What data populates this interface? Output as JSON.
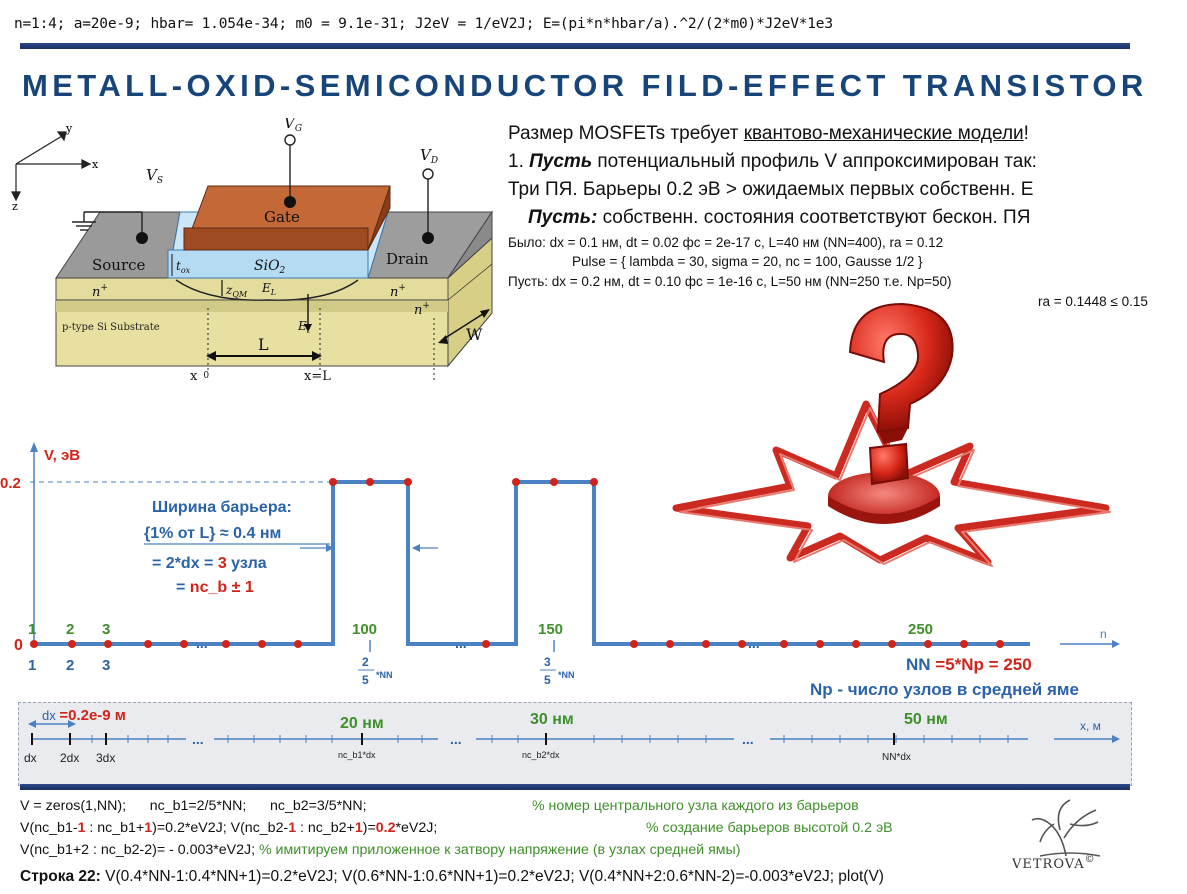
{
  "top_code": "n=1:4; a=20e-9; hbar= 1.054e-34; m0 = 9.1e-31; J2eV = 1/eV2J; E=(pi*n*hbar/a).^2/(2*m0)*J2eV*1e3",
  "title": "METALL-OXID-SEMICONDUCTOR FILD-EFFECT TRANSISTOR",
  "description": {
    "line1_a": "Размер MOSFETs требует ",
    "line1_b": "квантово-механические модели",
    "line1_c": "!",
    "line2_a": "1. ",
    "line2_b": "Пусть",
    "line2_c": " потенциальный профиль V аппроксимирован так:",
    "line3": "Три ПЯ. Барьеры 0.2 эВ > ожидаемых первых собственн. Е",
    "line4_a": "Пусть:",
    "line4_b": " собственн. состояния соответствуют бескон. ПЯ",
    "was_1": "Было:  dx = 0.1 нм, dt = 0.02 фс = 2e-17 с, L=40 нм (NN=400), ra = 0.12",
    "was_2": "Pulse = { lambda = 30, sigma = 20, nc = 100, Gausse 1/2 }",
    "let_1": "Пусть: dx = 0.2 нм, dt = 0.10 фс = 1e-16 с, L=50 нм (NN=250 т.е. Np=50)",
    "let_2": "ra = 0.1448 ≤ 0.15"
  },
  "mosfet": {
    "axis_y": "y",
    "axis_x": "x",
    "axis_z": "z",
    "vs": "V",
    "vs_sub": "S",
    "vg": "V",
    "vg_sub": "G",
    "vd": "V",
    "vd_sub": "D",
    "gate": "Gate",
    "source": "Source",
    "drain": "Drain",
    "oxide": "SiO",
    "oxide_sub": "2",
    "tox": "t",
    "tox_sub": "ox",
    "nplus_left": "n",
    "nplus_right": "n",
    "nplus_right2": "n",
    "plus": "+",
    "zqm": "z",
    "zqm_sub": "QM",
    "el": "E",
    "el_sub": "L",
    "et": "E",
    "et_sub": "t",
    "substrate": "p-type Si  Substrate",
    "L": "L",
    "W": "W",
    "x0": "x",
    "x0_sub": "0",
    "xL": "x=L"
  },
  "plot": {
    "ylabel": "V, эВ",
    "y02": "0.2",
    "y0": "0",
    "xlabel": "n",
    "top_nodes": [
      "1",
      "2",
      "3"
    ],
    "bottom_nodes": [
      "1",
      "2",
      "3"
    ],
    "n100": "100",
    "n150": "150",
    "n250": "250",
    "dots": "...",
    "frac1_num": "2",
    "frac1_den": "5",
    "frac2_num": "3",
    "frac2_den": "5",
    "nn_small": "*NN",
    "width_1": "Ширина барьера:",
    "width_2": "{1% от L} ≈ 0.4 нм",
    "eq_1a": "= 2*dx = ",
    "eq_1b": "3",
    "eq_1c": " узла",
    "eq_2a": "= ",
    "eq_2b": "nc_b ± 1",
    "nn_a": "NN ",
    "nn_b": "=5*Np = 250",
    "np_note": "Np - число узлов в средней яме"
  },
  "axisbox": {
    "dx_label": "dx ",
    "dx_value": "=0.2e-9 м",
    "m20": "20 нм",
    "m30": "30 нм",
    "m50": "50 нм",
    "xlabel": "x, м",
    "tick_dx": "dx",
    "tick_2dx": "2dx",
    "tick_3dx": "3dx",
    "tick_b1": "nc_b1*dx",
    "tick_b2": "nc_b2*dx",
    "tick_nn": "NN*dx",
    "dots": "..."
  },
  "code": {
    "l1_a": "V = zeros(1,NN);      nc_b1=2/5*NN;      nc_b2=3/5*NN;",
    "l1_c": "% номер центрального узла каждого из барьеров",
    "l2_a": "V(nc_b1-",
    "l2_b": "1",
    "l2_c": " : nc_b1+",
    "l2_d": "1",
    "l2_e": ")=0.2*eV2J;  V(nc_b2-",
    "l2_f": "1",
    "l2_g": " : nc_b2+",
    "l2_h": "1",
    "l2_i": ")=",
    "l2_j": "0.2",
    "l2_k": "*eV2J;",
    "l2_c2": "% создание барьеров высотой 0.2 эВ",
    "l3_a": "V(nc_b1+2 : nc_b2-2)= - 0.003*eV2J; ",
    "l3_c": "% имитируем приложенное к затвору напряжение (в узлах средней ямы)",
    "l4_label": "Строка 22:",
    "l4_code": " V(0.4*NN-1:0.4*NN+1)=0.2*eV2J; V(0.6*NN-1:0.6*NN+1)=0.2*eV2J; V(0.4*NN+2:0.6*NN-2)=-0.003*eV2J; plot(V)"
  },
  "logo": {
    "text": "VETROVA",
    "copy": "©"
  },
  "colors": {
    "title": "#17457a",
    "accent_blue": "#4a82c3",
    "node_red": "#d0241b",
    "label_green": "#3f8f2a",
    "gate": "#b9542a",
    "oxide": "#bfe0f5",
    "substrate": "#e9e2a2"
  }
}
